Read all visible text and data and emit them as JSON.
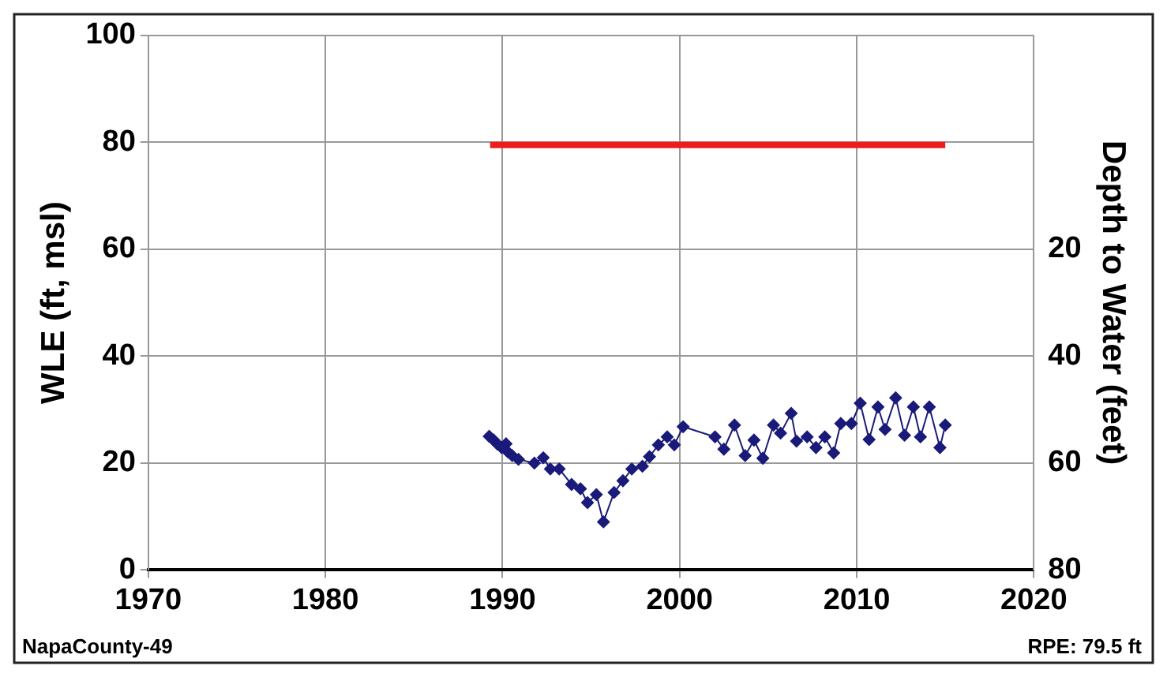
{
  "chart_data": {
    "type": "line",
    "ylabel": "WLE (ft, msl)",
    "y2label": "Depth to Water (feet)",
    "xlim": [
      1970,
      2020
    ],
    "xticks": [
      1970,
      1980,
      1990,
      2000,
      2010,
      2020
    ],
    "ylim": [
      0,
      100
    ],
    "yticks": [
      0,
      20,
      40,
      60,
      80,
      100
    ],
    "y2lim": [
      80,
      -20
    ],
    "y2ticks": [
      20,
      40,
      60,
      80
    ],
    "grid": true,
    "marker": "diamond",
    "line_style": "solid",
    "annotations": [
      "NapaCounty-49",
      "RPE: 79.5 ft"
    ],
    "series": [
      {
        "color": "#1a1a7a",
        "x": [
          1989.25,
          1989.5,
          1989.7,
          1989.95,
          1990.2,
          1990.3,
          1990.55,
          1990.9,
          1991.8,
          1992.3,
          1992.7,
          1993.2,
          1993.9,
          1994.4,
          1994.8,
          1995.3,
          1995.7,
          1996.3,
          1996.8,
          1997.3,
          1997.9,
          1998.3,
          1998.8,
          1999.3,
          1999.7,
          2000.2,
          2002.0,
          2002.5,
          2003.1,
          2003.7,
          2004.2,
          2004.7,
          2005.3,
          2005.7,
          2006.3,
          2006.6,
          2007.2,
          2007.7,
          2008.2,
          2008.7,
          2009.1,
          2009.7,
          2010.2,
          2010.7,
          2011.2,
          2011.6,
          2012.2,
          2012.7,
          2013.2,
          2013.6,
          2014.1,
          2014.7,
          2015.0
        ],
        "values": [
          25.0,
          24.3,
          23.6,
          22.9,
          23.6,
          22.1,
          21.4,
          20.7,
          20.0,
          21.0,
          18.9,
          18.9,
          16.0,
          15.2,
          12.6,
          14.1,
          9.0,
          14.5,
          16.7,
          18.9,
          19.4,
          21.2,
          23.4,
          24.9,
          23.4,
          26.8,
          24.9,
          22.6,
          27.1,
          21.4,
          24.3,
          20.9,
          27.1,
          25.6,
          29.3,
          24.1,
          24.9,
          22.9,
          24.9,
          21.9,
          27.4,
          27.4,
          31.2,
          24.4,
          30.5,
          26.3,
          32.2,
          25.2,
          30.5,
          24.9,
          30.5,
          22.9,
          27.1
        ]
      },
      {
        "color": "#ee1c1c",
        "marker": "none",
        "x": [
          1989.3,
          2015.0
        ],
        "values": [
          79.5,
          79.5
        ]
      }
    ]
  }
}
